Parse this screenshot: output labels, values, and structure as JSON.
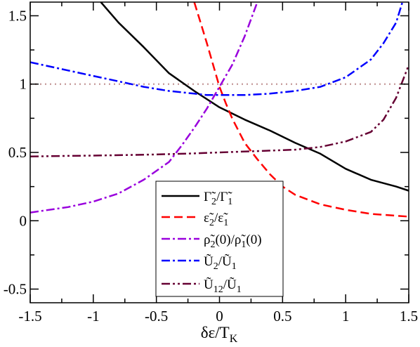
{
  "chart_data": {
    "type": "line",
    "xlabel": "δε/T_K",
    "xlim": [
      -1.5,
      1.5
    ],
    "ylim": [
      -0.6,
      1.6
    ],
    "x_ticks": [
      -1.5,
      -1,
      -0.5,
      0,
      0.5,
      1,
      1.5
    ],
    "x_tick_labels": [
      "-1.5",
      "-1",
      "-0.5",
      "0",
      "0.5",
      "1",
      "1.5"
    ],
    "y_ticks": [
      -0.5,
      0,
      0.5,
      1,
      1.5
    ],
    "y_tick_labels": [
      "-0.5",
      "0",
      "0.5",
      "1",
      "1.5"
    ],
    "legend_position": "bottom-center",
    "reference_line": {
      "y": 1,
      "color": "#c9a0a0",
      "style": "dotted"
    },
    "series": [
      {
        "name": "Γ̃2/Γ̃1",
        "color": "#000000",
        "dash": "solid",
        "x": [
          -0.94,
          -0.8,
          -0.6,
          -0.4,
          -0.2,
          0.0,
          0.2,
          0.4,
          0.6,
          0.8,
          1.0,
          1.2,
          1.4,
          1.5
        ],
        "y": [
          1.6,
          1.45,
          1.27,
          1.08,
          0.95,
          0.83,
          0.74,
          0.66,
          0.57,
          0.49,
          0.38,
          0.3,
          0.25,
          0.22
        ]
      },
      {
        "name": "ε̃2/ε̃1",
        "color": "#ff0000",
        "dash": "dashed",
        "x": [
          -0.2,
          -0.15,
          -0.1,
          -0.05,
          0.0,
          0.05,
          0.1,
          0.2,
          0.3,
          0.4,
          0.5,
          0.6,
          0.8,
          1.0,
          1.2,
          1.5
        ],
        "y": [
          1.6,
          1.45,
          1.3,
          1.14,
          0.98,
          0.86,
          0.75,
          0.57,
          0.45,
          0.34,
          0.25,
          0.19,
          0.12,
          0.08,
          0.05,
          0.03
        ]
      },
      {
        "name": "ρ̃2(0)/ρ̃1(0)",
        "color": "#9900dd",
        "dash": "dashdot",
        "x": [
          -1.5,
          -1.2,
          -1.0,
          -0.8,
          -0.6,
          -0.4,
          -0.3,
          -0.2,
          -0.1,
          0.0,
          0.1,
          0.2,
          0.3
        ],
        "y": [
          0.06,
          0.1,
          0.14,
          0.2,
          0.3,
          0.43,
          0.55,
          0.68,
          0.82,
          0.98,
          1.14,
          1.35,
          1.6
        ]
      },
      {
        "name": "Ũ2/Ũ1",
        "color": "#0000ff",
        "dash": "dashdot",
        "x": [
          -1.5,
          -1.2,
          -1.0,
          -0.8,
          -0.6,
          -0.4,
          -0.2,
          -0.1,
          0.0,
          0.2,
          0.4,
          0.6,
          0.8,
          1.0,
          1.2,
          1.3,
          1.4,
          1.45
        ],
        "y": [
          1.16,
          1.1,
          1.06,
          1.02,
          0.98,
          0.95,
          0.93,
          0.92,
          0.92,
          0.92,
          0.93,
          0.95,
          0.98,
          1.05,
          1.18,
          1.3,
          1.45,
          1.6
        ]
      },
      {
        "name": "Ũ12/Ũ1",
        "color": "#660033",
        "dash": "dashdotdot",
        "x": [
          -1.5,
          -1.2,
          -1.0,
          -0.8,
          -0.5,
          -0.2,
          0.0,
          0.3,
          0.6,
          0.8,
          1.0,
          1.2,
          1.3,
          1.4,
          1.5
        ],
        "y": [
          0.47,
          0.475,
          0.477,
          0.48,
          0.485,
          0.493,
          0.5,
          0.51,
          0.52,
          0.54,
          0.58,
          0.65,
          0.74,
          0.9,
          1.14
        ]
      }
    ]
  }
}
